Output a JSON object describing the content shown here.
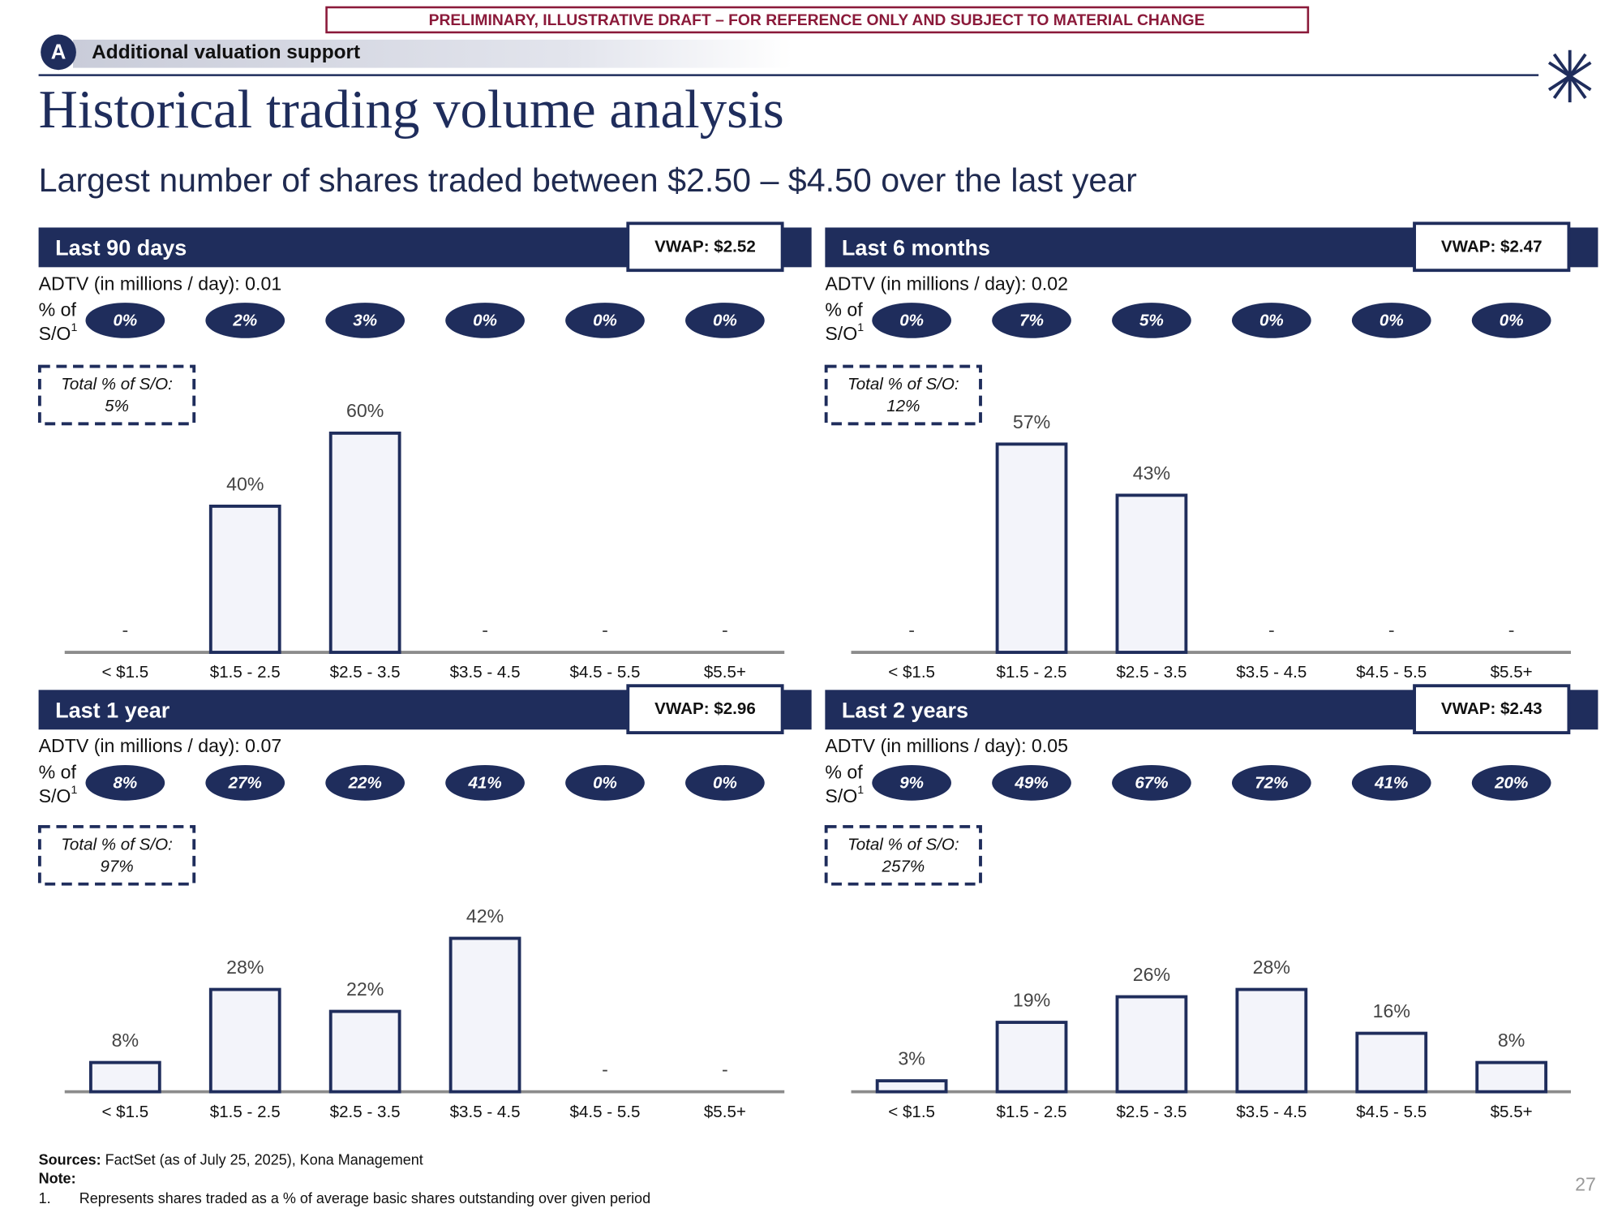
{
  "banner": "PRELIMINARY, ILLUSTRATIVE DRAFT – FOR REFERENCE ONLY AND SUBJECT TO MATERIAL CHANGE",
  "section": {
    "letter": "A",
    "title": "Additional valuation support"
  },
  "title": "Historical trading volume analysis",
  "subtitle": "Largest number of shares traded between $2.50 – $4.50 over the last year",
  "chart_data": [
    {
      "type": "bar",
      "title": "Last 90 days",
      "vwap": "VWAP: $2.52",
      "adtv": "ADTV (in millions / day): 0.01",
      "so_label": [
        "% of",
        "S/O"
      ],
      "so_note": "1",
      "color": "#1f2d5c",
      "fill": "#f3f4fa",
      "categories": [
        "< $1.5",
        "$1.5 - 2.5",
        "$2.5 - 3.5",
        "$3.5 - 4.5",
        "$4.5 - 5.5",
        "$5.5+"
      ],
      "values": [
        0,
        40,
        60,
        0,
        0,
        0
      ],
      "value_labels": [
        "-",
        "40%",
        "60%",
        "-",
        "-",
        "-"
      ],
      "so_values": [
        0,
        2,
        3,
        0,
        0,
        0
      ],
      "so_value_labels": [
        "0%",
        "2%",
        "3%",
        "0%",
        "0%",
        "0%"
      ],
      "total_label": "Total % of S/O:",
      "total": {
        "value": 5,
        "label": "5%"
      },
      "ylim": [
        0,
        80
      ]
    },
    {
      "type": "bar",
      "title": "Last 6 months",
      "vwap": "VWAP: $2.47",
      "adtv": "ADTV (in millions / day): 0.02",
      "so_label": [
        "% of",
        "S/O"
      ],
      "so_note": "1",
      "color": "#1f2d5c",
      "fill": "#f3f4fa",
      "categories": [
        "< $1.5",
        "$1.5 - 2.5",
        "$2.5 - 3.5",
        "$3.5 - 4.5",
        "$4.5 - 5.5",
        "$5.5+"
      ],
      "values": [
        0,
        57,
        43,
        0,
        0,
        0
      ],
      "value_labels": [
        "-",
        "57%",
        "43%",
        "-",
        "-",
        "-"
      ],
      "so_values": [
        0,
        7,
        5,
        0,
        0,
        0
      ],
      "so_value_labels": [
        "0%",
        "7%",
        "5%",
        "0%",
        "0%",
        "0%"
      ],
      "total_label": "Total % of S/O:",
      "total": {
        "value": 12,
        "label": "12%"
      },
      "ylim": [
        0,
        80
      ]
    },
    {
      "type": "bar",
      "title": "Last 1 year",
      "vwap": "VWAP: $2.96",
      "adtv": "ADTV (in millions / day): 0.07",
      "so_label": [
        "% of",
        "S/O"
      ],
      "so_note": "1",
      "color": "#1f2d5c",
      "fill": "#f3f4fa",
      "categories": [
        "< $1.5",
        "$1.5 - 2.5",
        "$2.5 - 3.5",
        "$3.5 - 4.5",
        "$4.5 - 5.5",
        "$5.5+"
      ],
      "values": [
        8,
        28,
        22,
        42,
        0,
        0
      ],
      "value_labels": [
        "8%",
        "28%",
        "22%",
        "42%",
        "-",
        "-"
      ],
      "so_values": [
        8,
        27,
        22,
        41,
        0,
        0
      ],
      "so_value_labels": [
        "8%",
        "27%",
        "22%",
        "41%",
        "0%",
        "0%"
      ],
      "total_label": "Total % of S/O:",
      "total": {
        "value": 97,
        "label": "97%"
      },
      "ylim": [
        0,
        80
      ]
    },
    {
      "type": "bar",
      "title": "Last 2 years",
      "vwap": "VWAP: $2.43",
      "adtv": "ADTV (in millions / day): 0.05",
      "so_label": [
        "% of",
        "S/O"
      ],
      "so_note": "1",
      "color": "#1f2d5c",
      "fill": "#f3f4fa",
      "categories": [
        "< $1.5",
        "$1.5 - 2.5",
        "$2.5 - 3.5",
        "$3.5 - 4.5",
        "$4.5 - 5.5",
        "$5.5+"
      ],
      "values": [
        3,
        19,
        26,
        28,
        16,
        8
      ],
      "value_labels": [
        "3%",
        "19%",
        "26%",
        "28%",
        "16%",
        "8%"
      ],
      "so_values": [
        9,
        49,
        67,
        72,
        41,
        20
      ],
      "so_value_labels": [
        "9%",
        "49%",
        "67%",
        "72%",
        "41%",
        "20%"
      ],
      "total_label": "Total % of S/O:",
      "total": {
        "value": 257,
        "label": "257%"
      },
      "ylim": [
        0,
        80
      ]
    }
  ],
  "footer": {
    "sources_label": "Sources:",
    "sources": "FactSet (as of July 25, 2025), Kona Management",
    "note_label": "Note:",
    "note_number": "1.",
    "note": "Represents shares traded as a % of average basic shares outstanding over given period"
  },
  "page_number": "27"
}
